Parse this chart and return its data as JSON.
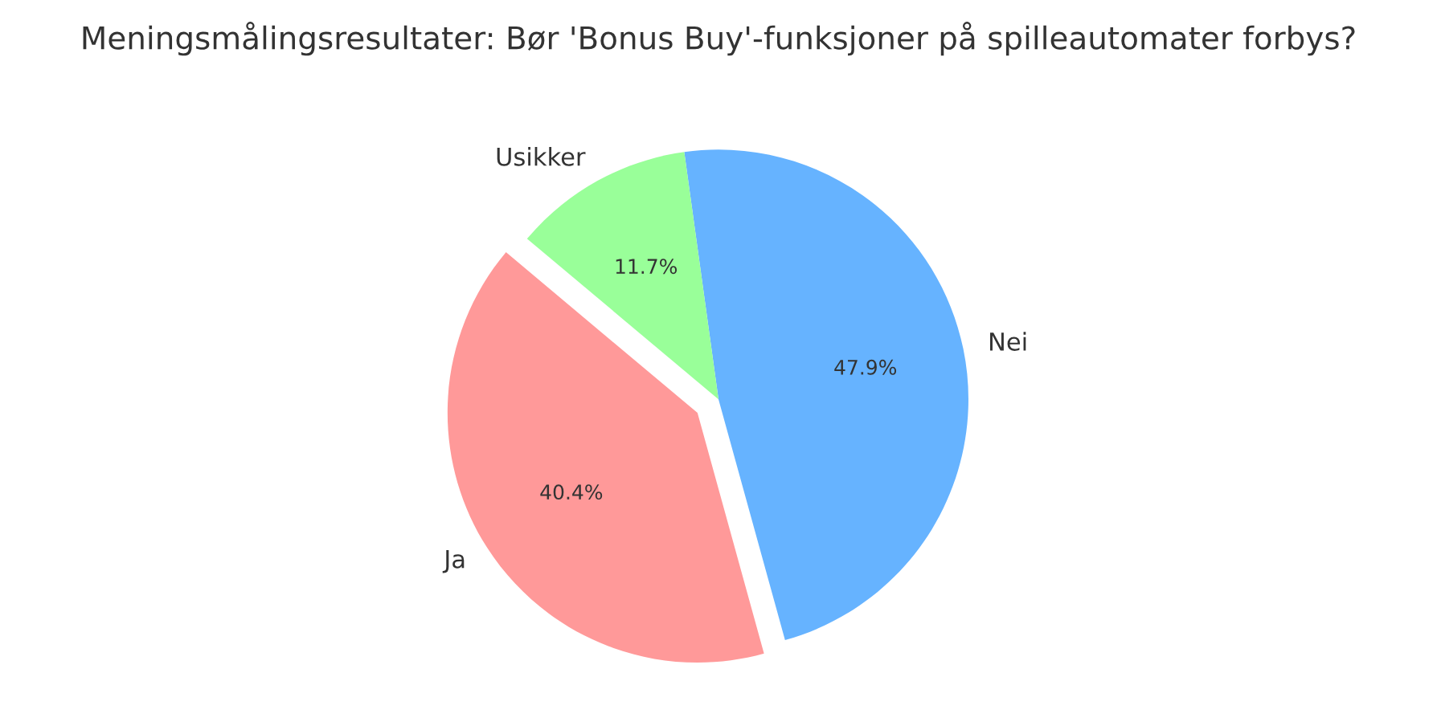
{
  "chart_data": {
    "type": "pie",
    "title": "Meningsmålingsresultater: Bør 'Bonus Buy'-funksjoner på spilleautomater forbys?",
    "categories": [
      "Ja",
      "Nei",
      "Usikker"
    ],
    "values": [
      40.4,
      47.9,
      11.7
    ],
    "colors": [
      "#ff9999",
      "#66b3ff",
      "#99ff99"
    ],
    "value_labels": [
      "40.4%",
      "47.9%",
      "11.7%"
    ]
  }
}
